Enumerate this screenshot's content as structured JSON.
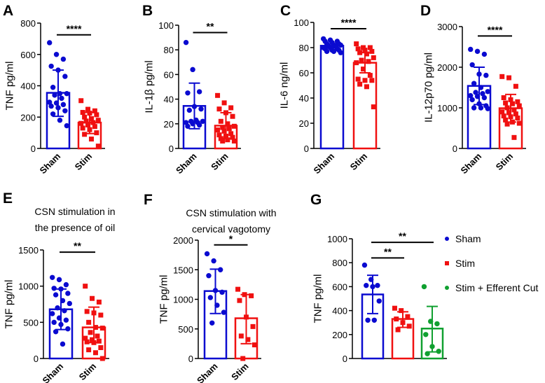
{
  "colors": {
    "sham": "#0a0ad0",
    "stim": "#f01010",
    "cut": "#10a030",
    "axis": "#000000"
  },
  "chart_data": [
    {
      "id": "A",
      "type": "bar",
      "letter": "A",
      "title": "",
      "ylabel": "TNF pg/ml",
      "ylim": [
        0,
        800
      ],
      "yticks": [
        0,
        200,
        400,
        600,
        800
      ],
      "categories": [
        "Sham",
        "Stim"
      ],
      "series": [
        {
          "name": "Sham",
          "color_key": "sham",
          "marker": "circle",
          "mean": 355,
          "sd_upper": 500,
          "sd_lower": 205,
          "points": [
            675,
            600,
            570,
            525,
            500,
            460,
            390,
            350,
            350,
            340,
            320,
            295,
            290,
            280,
            270,
            260,
            240,
            220,
            180,
            145
          ]
        },
        {
          "name": "Stim",
          "color_key": "stim",
          "marker": "square",
          "mean": 165,
          "sd_upper": 230,
          "sd_lower": 95,
          "points": [
            305,
            250,
            240,
            230,
            225,
            215,
            200,
            190,
            180,
            175,
            165,
            160,
            150,
            140,
            130,
            120,
            100,
            90,
            60,
            15
          ]
        }
      ],
      "significance": [
        {
          "from": 0,
          "to": 1,
          "label": "****",
          "y": 725
        }
      ]
    },
    {
      "id": "B",
      "type": "bar",
      "letter": "B",
      "title": "",
      "ylabel": "IL-1β pg/ml",
      "ylim": [
        0,
        100
      ],
      "yticks": [
        0,
        20,
        40,
        60,
        80,
        100
      ],
      "categories": [
        "Sham",
        "Stim"
      ],
      "series": [
        {
          "name": "Sham",
          "color_key": "sham",
          "marker": "circle",
          "mean": 34.5,
          "sd_upper": 53,
          "sd_lower": 16,
          "points": [
            86,
            64,
            46,
            45,
            34,
            32,
            31,
            23,
            22,
            22,
            21,
            21,
            20,
            19,
            18
          ]
        },
        {
          "name": "Stim",
          "color_key": "stim",
          "marker": "square",
          "mean": 18.5,
          "sd_upper": 29,
          "sd_lower": 8,
          "points": [
            43,
            37,
            33,
            32,
            29,
            26,
            22,
            20,
            18,
            17,
            16,
            15,
            14,
            12,
            11,
            10,
            9,
            8,
            7,
            6,
            6
          ]
        }
      ],
      "significance": [
        {
          "from": 0,
          "to": 1,
          "label": "**",
          "y": 94
        }
      ]
    },
    {
      "id": "C",
      "type": "bar",
      "letter": "C",
      "title": "",
      "ylabel": "IL-6 ng/ml",
      "ylim": [
        0,
        100
      ],
      "yticks": [
        0,
        20,
        40,
        60,
        80,
        100
      ],
      "categories": [
        "Sham",
        "Stim"
      ],
      "series": [
        {
          "name": "Sham",
          "color_key": "sham",
          "marker": "circle",
          "mean": 81.5,
          "sd_upper": 83,
          "sd_lower": 80,
          "points": [
            87,
            86,
            85,
            85,
            84,
            83,
            83,
            82,
            82,
            81,
            81,
            80,
            80,
            79,
            79,
            78,
            78,
            77,
            77,
            76
          ]
        },
        {
          "name": "Stim",
          "color_key": "stim",
          "marker": "square",
          "mean": 68,
          "sd_upper": 76,
          "sd_lower": 60,
          "points": [
            83,
            80,
            80,
            79,
            78,
            77,
            76,
            75,
            72,
            70,
            69,
            68,
            63,
            58,
            55,
            54,
            54,
            51,
            49,
            33
          ]
        }
      ],
      "significance": [
        {
          "from": 0,
          "to": 1,
          "label": "****",
          "y": 95
        }
      ]
    },
    {
      "id": "D",
      "type": "bar",
      "letter": "D",
      "title": "",
      "ylabel": "IL-12p70 pg/ml",
      "ylim": [
        0,
        3000
      ],
      "yticks": [
        0,
        1000,
        2000,
        3000
      ],
      "categories": [
        "Sham",
        "Stim"
      ],
      "series": [
        {
          "name": "Sham",
          "color_key": "sham",
          "marker": "circle",
          "mean": 1540,
          "sd_upper": 2000,
          "sd_lower": 1080,
          "points": [
            2440,
            2390,
            2320,
            2060,
            1830,
            1800,
            1600,
            1500,
            1400,
            1380,
            1350,
            1300,
            1280,
            1250,
            1200,
            1100,
            1050,
            1000,
            1000,
            980
          ]
        },
        {
          "name": "Stim",
          "color_key": "stim",
          "marker": "square",
          "mean": 990,
          "sd_upper": 1330,
          "sd_lower": 650,
          "points": [
            1770,
            1740,
            1530,
            1250,
            1200,
            1150,
            1120,
            1100,
            1050,
            1000,
            950,
            900,
            880,
            850,
            800,
            780,
            750,
            700,
            650,
            620,
            600,
            270
          ]
        }
      ],
      "significance": [
        {
          "from": 0,
          "to": 1,
          "label": "****",
          "y": 2770
        }
      ]
    },
    {
      "id": "E",
      "type": "bar",
      "letter": "E",
      "title": [
        "CSN stimulation in",
        "the presence of oil"
      ],
      "ylabel": "TNF pg/ml",
      "ylim": [
        0,
        1500
      ],
      "yticks": [
        0,
        500,
        1000,
        1500
      ],
      "categories": [
        "Sham",
        "Stim"
      ],
      "series": [
        {
          "name": "Sham",
          "color_key": "sham",
          "marker": "circle",
          "mean": 680,
          "sd_upper": 960,
          "sd_lower": 400,
          "points": [
            1120,
            1090,
            1020,
            970,
            960,
            900,
            880,
            800,
            760,
            700,
            660,
            620,
            560,
            530,
            500,
            470,
            410,
            370,
            200
          ]
        },
        {
          "name": "Stim",
          "color_key": "stim",
          "marker": "square",
          "mean": 430,
          "sd_upper": 710,
          "sd_lower": 220,
          "points": [
            1000,
            830,
            780,
            650,
            630,
            600,
            500,
            430,
            420,
            360,
            310,
            280,
            260,
            240,
            230,
            220,
            150,
            120,
            80,
            0
          ]
        }
      ],
      "significance": [
        {
          "from": 0,
          "to": 1,
          "label": "**",
          "y": 1470
        }
      ]
    },
    {
      "id": "F",
      "type": "bar",
      "letter": "F",
      "title": [
        "CSN stimulation with",
        "cervical vagotomy"
      ],
      "ylabel": "TNF pg/ml",
      "ylim": [
        0,
        2000
      ],
      "yticks": [
        0,
        500,
        1000,
        1500,
        2000
      ],
      "categories": [
        "Sham",
        "Stim"
      ],
      "series": [
        {
          "name": "Sham",
          "color_key": "sham",
          "marker": "circle",
          "mean": 1140,
          "sd_upper": 1510,
          "sd_lower": 760,
          "points": [
            1770,
            1650,
            1500,
            1400,
            1150,
            1120,
            1030,
            900,
            780,
            600
          ]
        },
        {
          "name": "Stim",
          "color_key": "stim",
          "marker": "square",
          "mean": 680,
          "sd_upper": 1080,
          "sd_lower": 250,
          "points": [
            1170,
            1080,
            1060,
            980,
            700,
            540,
            380,
            320,
            230,
            0
          ]
        }
      ],
      "significance": [
        {
          "from": 0,
          "to": 1,
          "label": "*",
          "y": 1920
        }
      ]
    },
    {
      "id": "G",
      "type": "bar",
      "letter": "G",
      "title": "",
      "ylabel": "TNF pg/ml",
      "ylim": [
        0,
        1000
      ],
      "yticks": [
        0,
        200,
        400,
        600,
        800,
        1000
      ],
      "categories": [
        "Sham",
        "Stim",
        "Stim + Efferent Cut"
      ],
      "series": [
        {
          "name": "Sham",
          "color_key": "sham",
          "marker": "circle",
          "mean": 535,
          "sd_upper": 695,
          "sd_lower": 375,
          "points": [
            780,
            660,
            610,
            610,
            600,
            480,
            320,
            320
          ]
        },
        {
          "name": "Stim",
          "color_key": "stim",
          "marker": "square",
          "mean": 330,
          "sd_upper": 390,
          "sd_lower": 260,
          "points": [
            420,
            400,
            350,
            330,
            300,
            270,
            240
          ]
        },
        {
          "name": "Stim + Efferent Cut",
          "color_key": "cut",
          "marker": "circle",
          "mean": 250,
          "sd_upper": 435,
          "sd_lower": 55,
          "points": [
            600,
            310,
            290,
            200,
            100,
            60,
            40
          ]
        }
      ],
      "significance": [
        {
          "from": 0,
          "to": 1,
          "label": "**",
          "y": 840
        },
        {
          "from": 0,
          "to": 2,
          "label": "**",
          "y": 970
        }
      ],
      "legend": {
        "position": "right",
        "entries": [
          "Sham",
          "Stim",
          "Stim + Efferent Cut"
        ]
      }
    }
  ]
}
